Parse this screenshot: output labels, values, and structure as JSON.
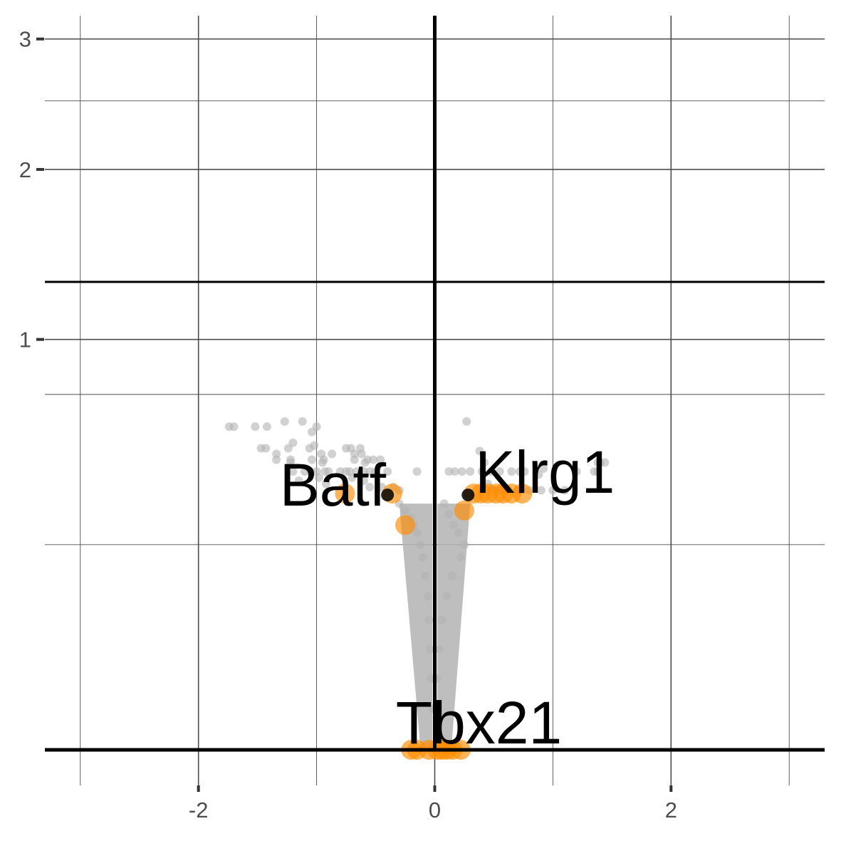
{
  "chart_data": {
    "type": "scatter",
    "title": "",
    "xlabel": "",
    "ylabel": "",
    "xlim": [
      -3.3,
      3.3
    ],
    "ylim": [
      0,
      3.2
    ],
    "x_ticks": [
      -2,
      0,
      2
    ],
    "x_tick_labels": [
      "-2",
      "0",
      "2"
    ],
    "y_ticks": [
      1,
      2,
      3
    ],
    "y_tick_labels": [
      "1",
      "2",
      "3"
    ],
    "y_scale": "sqrt",
    "grid": true,
    "threshold_lines": {
      "x": [
        0
      ],
      "y": [
        0,
        1.3
      ]
    },
    "colors": {
      "background": "#gray",
      "highlight": "#ff8c00",
      "threshold": "#000000",
      "grid": "#4d4d4d"
    },
    "series": [
      {
        "color": "#b3b3b3",
        "points": [
          [
            -1.74,
            0.62
          ],
          [
            -1.7,
            0.62
          ],
          [
            -1.52,
            0.62
          ],
          [
            -1.42,
            0.62
          ],
          [
            -1.27,
            0.64
          ],
          [
            -1.12,
            0.64
          ],
          [
            -1.0,
            0.62
          ],
          [
            -1.04,
            0.6
          ],
          [
            -1.2,
            0.56
          ],
          [
            -1.47,
            0.54
          ],
          [
            -1.43,
            0.54
          ],
          [
            -1.24,
            0.54
          ],
          [
            -1.06,
            0.54
          ],
          [
            -1.02,
            0.55
          ],
          [
            -0.96,
            0.52
          ],
          [
            -0.87,
            0.52
          ],
          [
            -0.75,
            0.54
          ],
          [
            -0.71,
            0.54
          ],
          [
            -0.63,
            0.54
          ],
          [
            -0.68,
            0.52
          ],
          [
            -0.62,
            0.52
          ],
          [
            -1.34,
            0.52
          ],
          [
            -1.34,
            0.5
          ],
          [
            -1.22,
            0.5
          ],
          [
            -1.04,
            0.5
          ],
          [
            -0.94,
            0.5
          ],
          [
            -0.68,
            0.5
          ],
          [
            -0.57,
            0.5
          ],
          [
            -0.52,
            0.5
          ],
          [
            -0.46,
            0.5
          ],
          [
            -1.22,
            0.49
          ],
          [
            -0.95,
            0.49
          ],
          [
            -0.59,
            0.49
          ],
          [
            -1.2,
            0.46
          ],
          [
            -1.1,
            0.46
          ],
          [
            -1.05,
            0.46
          ],
          [
            -1.0,
            0.46
          ],
          [
            -0.93,
            0.46
          ],
          [
            -0.9,
            0.46
          ],
          [
            -0.8,
            0.46
          ],
          [
            -0.75,
            0.46
          ],
          [
            -0.72,
            0.46
          ],
          [
            -0.66,
            0.46
          ],
          [
            -0.6,
            0.46
          ],
          [
            -0.55,
            0.46
          ],
          [
            -0.5,
            0.46
          ],
          [
            -0.4,
            0.46
          ],
          [
            -0.15,
            0.46
          ],
          [
            -1.15,
            0.43
          ],
          [
            -0.98,
            0.44
          ],
          [
            -0.92,
            0.42
          ],
          [
            -0.7,
            0.44
          ],
          [
            -0.6,
            0.43
          ],
          [
            -0.55,
            0.41
          ],
          [
            -0.45,
            0.41
          ],
          [
            -0.35,
            0.41
          ],
          [
            -0.3,
            0.4
          ],
          [
            -0.3,
            0.36
          ],
          [
            -0.25,
            0.34
          ],
          [
            -0.2,
            0.32
          ],
          [
            -0.18,
            0.3
          ],
          [
            -0.15,
            0.28
          ],
          [
            -0.12,
            0.25
          ],
          [
            -0.1,
            0.22
          ],
          [
            -0.08,
            0.18
          ],
          [
            -0.06,
            0.14
          ],
          [
            -0.05,
            0.1
          ],
          [
            -0.04,
            0.06
          ],
          [
            -0.03,
            0.03
          ],
          [
            -0.02,
            0.01
          ],
          [
            0.27,
            0.64
          ],
          [
            0.38,
            0.53
          ],
          [
            0.42,
            0.49
          ],
          [
            0.12,
            0.46
          ],
          [
            0.17,
            0.46
          ],
          [
            0.23,
            0.46
          ],
          [
            0.3,
            0.46
          ],
          [
            0.4,
            0.46
          ],
          [
            0.48,
            0.46
          ],
          [
            0.55,
            0.46
          ],
          [
            0.65,
            0.46
          ],
          [
            0.72,
            0.46
          ],
          [
            0.76,
            0.46
          ],
          [
            0.92,
            0.47
          ],
          [
            1.2,
            0.46
          ],
          [
            1.35,
            0.46
          ],
          [
            1.38,
            0.46
          ],
          [
            0.88,
            0.45
          ],
          [
            1.4,
            0.49
          ],
          [
            1.44,
            0.49
          ],
          [
            1.38,
            0.49
          ],
          [
            0.45,
            0.42
          ],
          [
            0.5,
            0.4
          ],
          [
            0.55,
            0.4
          ],
          [
            0.62,
            0.4
          ],
          [
            0.7,
            0.4
          ],
          [
            0.8,
            0.4
          ],
          [
            0.9,
            0.4
          ],
          [
            1.0,
            0.4
          ],
          [
            1.1,
            0.4
          ],
          [
            0.08,
            0.36
          ],
          [
            0.12,
            0.33
          ],
          [
            0.16,
            0.3
          ],
          [
            0.2,
            0.28
          ],
          [
            0.25,
            0.25
          ],
          [
            0.22,
            0.22
          ],
          [
            0.15,
            0.18
          ],
          [
            0.1,
            0.14
          ],
          [
            0.06,
            0.1
          ],
          [
            0.04,
            0.06
          ],
          [
            0.02,
            0.03
          ],
          [
            0.01,
            0.01
          ]
        ]
      },
      {
        "color": "#ff8c00",
        "points": [
          [
            -0.76,
            0.39
          ],
          [
            -0.36,
            0.39
          ],
          [
            -0.25,
            0.3
          ],
          [
            -0.2,
            0.0
          ],
          [
            -0.15,
            0.0
          ],
          [
            -0.05,
            0.0
          ],
          [
            0.02,
            0.0
          ],
          [
            0.06,
            0.0
          ],
          [
            0.1,
            0.0
          ],
          [
            0.15,
            0.0
          ],
          [
            0.22,
            0.0
          ],
          [
            0.25,
            0.34
          ],
          [
            0.33,
            0.39
          ],
          [
            0.39,
            0.39
          ],
          [
            0.45,
            0.39
          ],
          [
            0.52,
            0.39
          ],
          [
            0.58,
            0.39
          ],
          [
            0.65,
            0.39
          ],
          [
            0.74,
            0.39
          ]
        ]
      }
    ],
    "highlight_marker": "#000000",
    "annotations": [
      {
        "text": "Batf",
        "x": -0.4,
        "y": 0.39
      },
      {
        "text": "Klrg1",
        "x": 0.27,
        "y": 0.39
      },
      {
        "text": "Tbx21",
        "x": 0.0,
        "y": 0.0
      }
    ]
  }
}
